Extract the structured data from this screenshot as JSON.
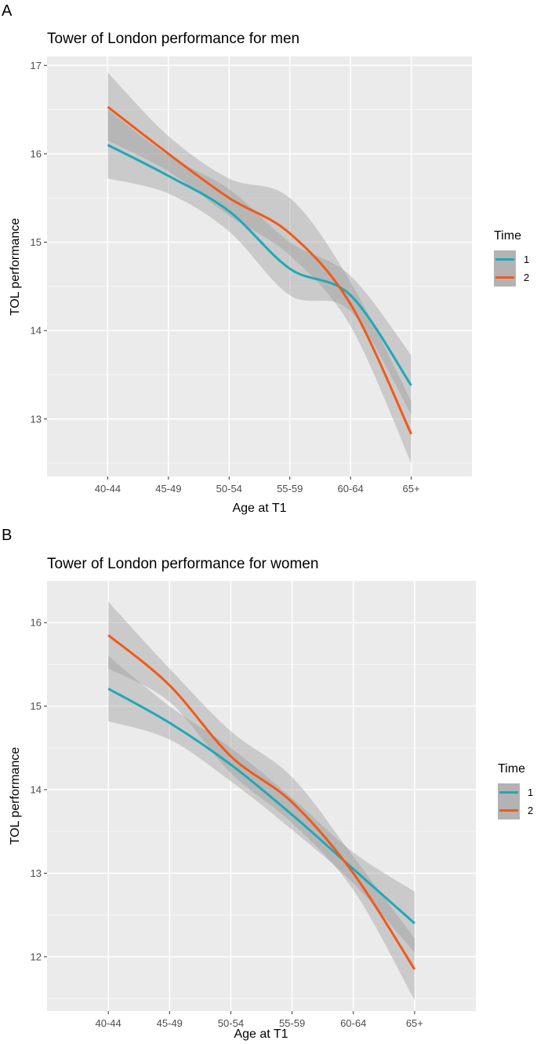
{
  "chart_data": [
    {
      "type": "line",
      "panel": "A",
      "title": "Tower of London performance for men",
      "xlabel": "Age at T1",
      "ylabel": "TOL performance",
      "categories": [
        "40-44",
        "45-49",
        "50-54",
        "55-59",
        "60-64",
        "65+"
      ],
      "ylim": [
        12.35,
        17.1
      ],
      "yticks": [
        13,
        14,
        15,
        16,
        17
      ],
      "legend": {
        "title": "Time",
        "position": "right"
      },
      "series": [
        {
          "name": "1",
          "color": "#21a8b6",
          "values": [
            16.1,
            15.75,
            15.35,
            14.7,
            14.4,
            13.38
          ],
          "lower": [
            15.72,
            15.55,
            15.12,
            14.4,
            14.22,
            13.05
          ],
          "upper": [
            16.5,
            15.98,
            15.6,
            15.0,
            14.62,
            13.72
          ]
        },
        {
          "name": "2",
          "color": "#f05a1a",
          "values": [
            16.53,
            16.0,
            15.5,
            15.1,
            14.3,
            12.83
          ],
          "lower": [
            16.15,
            15.8,
            15.3,
            14.85,
            14.05,
            12.5
          ],
          "upper": [
            16.92,
            16.2,
            15.72,
            15.5,
            14.55,
            13.2
          ]
        }
      ]
    },
    {
      "type": "line",
      "panel": "B",
      "title": "Tower of London performance for women",
      "xlabel": "Age at T1",
      "ylabel": "TOL performance",
      "categories": [
        "40-44",
        "45-49",
        "50-54",
        "55-59",
        "60-64",
        "65+"
      ],
      "ylim": [
        11.35,
        16.5
      ],
      "yticks": [
        12,
        13,
        14,
        15,
        16
      ],
      "legend": {
        "title": "Time",
        "position": "right"
      },
      "series": [
        {
          "name": "1",
          "color": "#21a8b6",
          "values": [
            15.21,
            14.8,
            14.3,
            13.7,
            13.05,
            12.4
          ],
          "lower": [
            14.82,
            14.6,
            14.1,
            13.52,
            12.88,
            12.05
          ],
          "upper": [
            15.6,
            15.0,
            14.5,
            13.9,
            13.25,
            12.78
          ]
        },
        {
          "name": "2",
          "color": "#f05a1a",
          "values": [
            15.85,
            15.25,
            14.4,
            13.85,
            13.0,
            11.85
          ],
          "lower": [
            15.45,
            15.05,
            14.2,
            13.6,
            12.8,
            11.48
          ],
          "upper": [
            16.25,
            15.45,
            14.7,
            14.15,
            13.2,
            12.22
          ]
        }
      ]
    }
  ]
}
